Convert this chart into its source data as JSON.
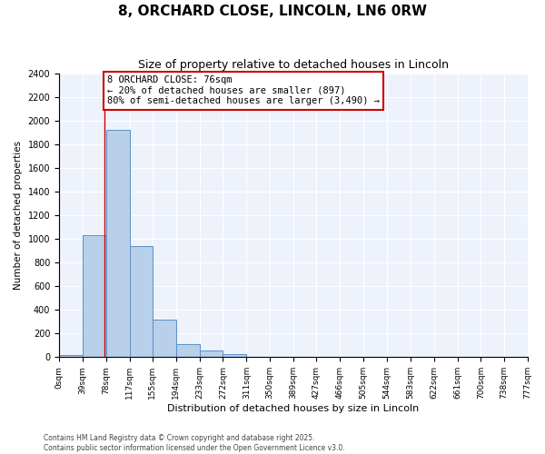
{
  "title": "8, ORCHARD CLOSE, LINCOLN, LN6 0RW",
  "subtitle": "Size of property relative to detached houses in Lincoln",
  "xlabel": "Distribution of detached houses by size in Lincoln",
  "ylabel": "Number of detached properties",
  "bar_color": "#b8d0ea",
  "bar_edge_color": "#5b8fc9",
  "bin_edges": [
    0,
    39,
    78,
    117,
    155,
    194,
    233,
    272,
    311,
    350,
    389,
    427,
    466,
    505,
    544,
    583,
    622,
    661,
    700,
    738,
    777
  ],
  "bin_labels": [
    "0sqm",
    "39sqm",
    "78sqm",
    "117sqm",
    "155sqm",
    "194sqm",
    "233sqm",
    "272sqm",
    "311sqm",
    "350sqm",
    "389sqm",
    "427sqm",
    "466sqm",
    "505sqm",
    "544sqm",
    "583sqm",
    "622sqm",
    "661sqm",
    "700sqm",
    "738sqm",
    "777sqm"
  ],
  "counts": [
    20,
    1030,
    1920,
    940,
    320,
    110,
    55,
    28,
    0,
    0,
    0,
    0,
    0,
    0,
    0,
    0,
    0,
    0,
    0,
    0
  ],
  "ylim": [
    0,
    2400
  ],
  "yticks": [
    0,
    200,
    400,
    600,
    800,
    1000,
    1200,
    1400,
    1600,
    1800,
    2000,
    2200,
    2400
  ],
  "red_line_x": 76,
  "annotation_title": "8 ORCHARD CLOSE: 76sqm",
  "annotation_line1": "← 20% of detached houses are smaller (897)",
  "annotation_line2": "80% of semi-detached houses are larger (3,490) →",
  "annotation_box_color": "#ffffff",
  "annotation_box_edge_color": "#cc0000",
  "footer1": "Contains HM Land Registry data © Crown copyright and database right 2025.",
  "footer2": "Contains public sector information licensed under the Open Government Licence v3.0.",
  "background_color": "#eef2fb",
  "grid_color": "#ffffff",
  "fig_bg_color": "#ffffff"
}
